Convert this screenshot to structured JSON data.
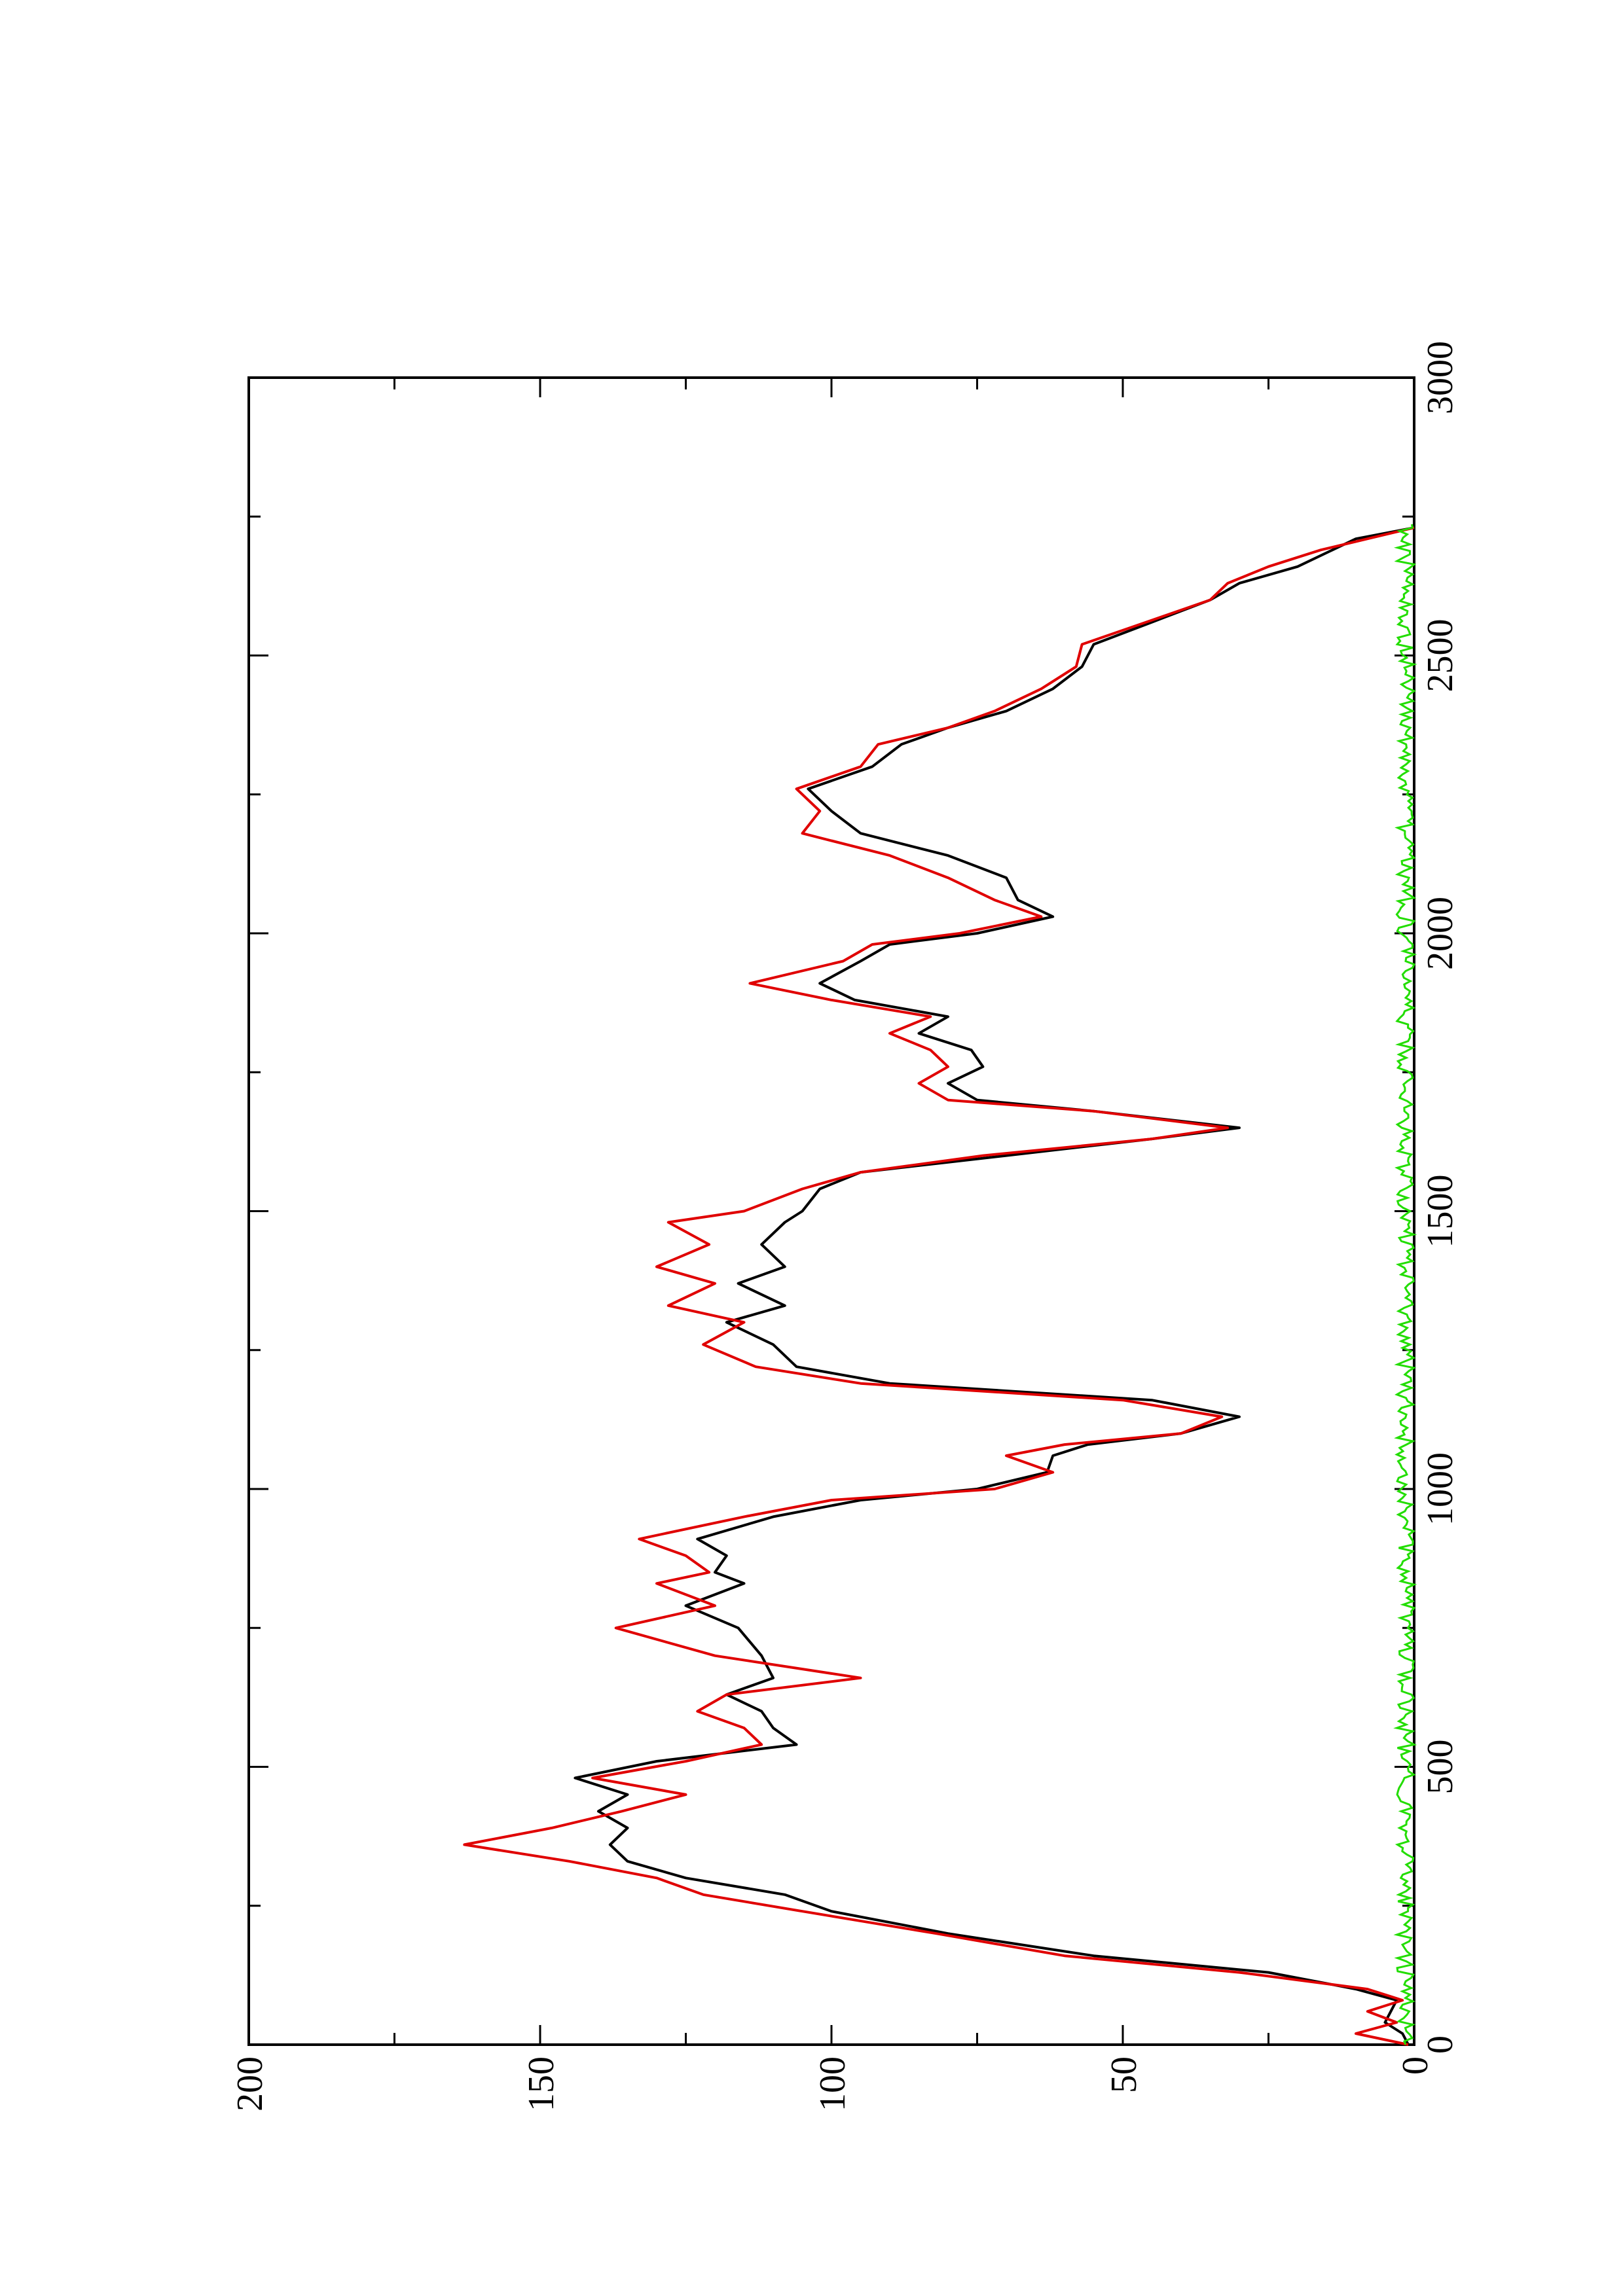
{
  "chart_data": {
    "type": "line",
    "orientation": "rotated-landscape",
    "title": "",
    "xlabel": "",
    "ylabel": "",
    "xlim": [
      0,
      3000
    ],
    "ylim": [
      0,
      200
    ],
    "x_ticks": [
      "0",
      "500",
      "1000",
      "1500",
      "2000",
      "2500",
      "3000"
    ],
    "y_ticks": [
      "0",
      "50",
      "100",
      "150",
      "200"
    ],
    "grid": false,
    "legend": "none",
    "series": [
      {
        "color": "#000000",
        "points": [
          [
            0,
            1
          ],
          [
            20,
            2
          ],
          [
            40,
            5
          ],
          [
            60,
            4
          ],
          [
            80,
            3
          ],
          [
            100,
            10
          ],
          [
            130,
            25
          ],
          [
            160,
            55
          ],
          [
            200,
            80
          ],
          [
            240,
            100
          ],
          [
            270,
            108
          ],
          [
            300,
            125
          ],
          [
            330,
            135
          ],
          [
            360,
            138
          ],
          [
            390,
            135
          ],
          [
            420,
            140
          ],
          [
            450,
            135
          ],
          [
            480,
            144
          ],
          [
            510,
            130
          ],
          [
            540,
            106
          ],
          [
            570,
            110
          ],
          [
            600,
            112
          ],
          [
            630,
            118
          ],
          [
            660,
            110
          ],
          [
            700,
            112
          ],
          [
            750,
            116
          ],
          [
            790,
            125
          ],
          [
            830,
            115
          ],
          [
            850,
            120
          ],
          [
            880,
            118
          ],
          [
            910,
            123
          ],
          [
            950,
            110
          ],
          [
            980,
            95
          ],
          [
            1000,
            75
          ],
          [
            1030,
            63
          ],
          [
            1060,
            62
          ],
          [
            1080,
            56
          ],
          [
            1100,
            40
          ],
          [
            1130,
            30
          ],
          [
            1160,
            45
          ],
          [
            1190,
            90
          ],
          [
            1220,
            106
          ],
          [
            1260,
            110
          ],
          [
            1300,
            118
          ],
          [
            1330,
            108
          ],
          [
            1370,
            116
          ],
          [
            1400,
            108
          ],
          [
            1440,
            112
          ],
          [
            1480,
            108
          ],
          [
            1500,
            105
          ],
          [
            1540,
            102
          ],
          [
            1570,
            95
          ],
          [
            1600,
            70
          ],
          [
            1630,
            45
          ],
          [
            1650,
            30
          ],
          [
            1680,
            55
          ],
          [
            1700,
            75
          ],
          [
            1730,
            80
          ],
          [
            1760,
            74
          ],
          [
            1790,
            76
          ],
          [
            1820,
            85
          ],
          [
            1850,
            80
          ],
          [
            1880,
            96
          ],
          [
            1910,
            102
          ],
          [
            1950,
            95
          ],
          [
            1980,
            90
          ],
          [
            2000,
            75
          ],
          [
            2030,
            62
          ],
          [
            2060,
            68
          ],
          [
            2100,
            70
          ],
          [
            2140,
            80
          ],
          [
            2180,
            95
          ],
          [
            2220,
            100
          ],
          [
            2260,
            104
          ],
          [
            2300,
            93
          ],
          [
            2340,
            88
          ],
          [
            2370,
            80
          ],
          [
            2400,
            70
          ],
          [
            2440,
            62
          ],
          [
            2480,
            57
          ],
          [
            2520,
            55
          ],
          [
            2560,
            45
          ],
          [
            2600,
            35
          ],
          [
            2630,
            30
          ],
          [
            2660,
            20
          ],
          [
            2690,
            14
          ],
          [
            2710,
            10
          ],
          [
            2730,
            0
          ]
        ]
      },
      {
        "color": "#e00000",
        "points": [
          [
            0,
            1
          ],
          [
            20,
            10
          ],
          [
            40,
            3
          ],
          [
            60,
            8
          ],
          [
            80,
            2
          ],
          [
            100,
            8
          ],
          [
            130,
            30
          ],
          [
            160,
            60
          ],
          [
            200,
            82
          ],
          [
            240,
            105
          ],
          [
            270,
            122
          ],
          [
            300,
            130
          ],
          [
            330,
            145
          ],
          [
            360,
            163
          ],
          [
            390,
            148
          ],
          [
            420,
            136
          ],
          [
            450,
            125
          ],
          [
            480,
            141
          ],
          [
            510,
            125
          ],
          [
            540,
            112
          ],
          [
            570,
            115
          ],
          [
            600,
            123
          ],
          [
            630,
            118
          ],
          [
            660,
            95
          ],
          [
            700,
            120
          ],
          [
            750,
            137
          ],
          [
            790,
            120
          ],
          [
            830,
            130
          ],
          [
            850,
            121
          ],
          [
            880,
            125
          ],
          [
            910,
            133
          ],
          [
            950,
            115
          ],
          [
            980,
            100
          ],
          [
            1000,
            72
          ],
          [
            1030,
            62
          ],
          [
            1060,
            70
          ],
          [
            1080,
            60
          ],
          [
            1100,
            40
          ],
          [
            1130,
            33
          ],
          [
            1160,
            50
          ],
          [
            1190,
            95
          ],
          [
            1220,
            113
          ],
          [
            1260,
            122
          ],
          [
            1300,
            115
          ],
          [
            1330,
            128
          ],
          [
            1370,
            120
          ],
          [
            1400,
            130
          ],
          [
            1440,
            121
          ],
          [
            1480,
            128
          ],
          [
            1500,
            115
          ],
          [
            1540,
            105
          ],
          [
            1570,
            95
          ],
          [
            1600,
            74
          ],
          [
            1630,
            45
          ],
          [
            1650,
            32
          ],
          [
            1680,
            55
          ],
          [
            1700,
            80
          ],
          [
            1730,
            85
          ],
          [
            1760,
            80
          ],
          [
            1790,
            83
          ],
          [
            1820,
            90
          ],
          [
            1850,
            83
          ],
          [
            1880,
            100
          ],
          [
            1910,
            114
          ],
          [
            1950,
            98
          ],
          [
            1980,
            93
          ],
          [
            2000,
            78
          ],
          [
            2030,
            64
          ],
          [
            2060,
            72
          ],
          [
            2100,
            80
          ],
          [
            2140,
            90
          ],
          [
            2180,
            105
          ],
          [
            2220,
            102
          ],
          [
            2260,
            106
          ],
          [
            2300,
            95
          ],
          [
            2340,
            92
          ],
          [
            2370,
            80
          ],
          [
            2400,
            72
          ],
          [
            2440,
            64
          ],
          [
            2480,
            58
          ],
          [
            2520,
            57
          ],
          [
            2560,
            46
          ],
          [
            2600,
            35
          ],
          [
            2630,
            32
          ],
          [
            2660,
            25
          ],
          [
            2690,
            16
          ],
          [
            2710,
            8
          ],
          [
            2730,
            0
          ]
        ]
      },
      {
        "color": "#22dd00",
        "band_max": 3,
        "x_end": 2740
      }
    ]
  }
}
